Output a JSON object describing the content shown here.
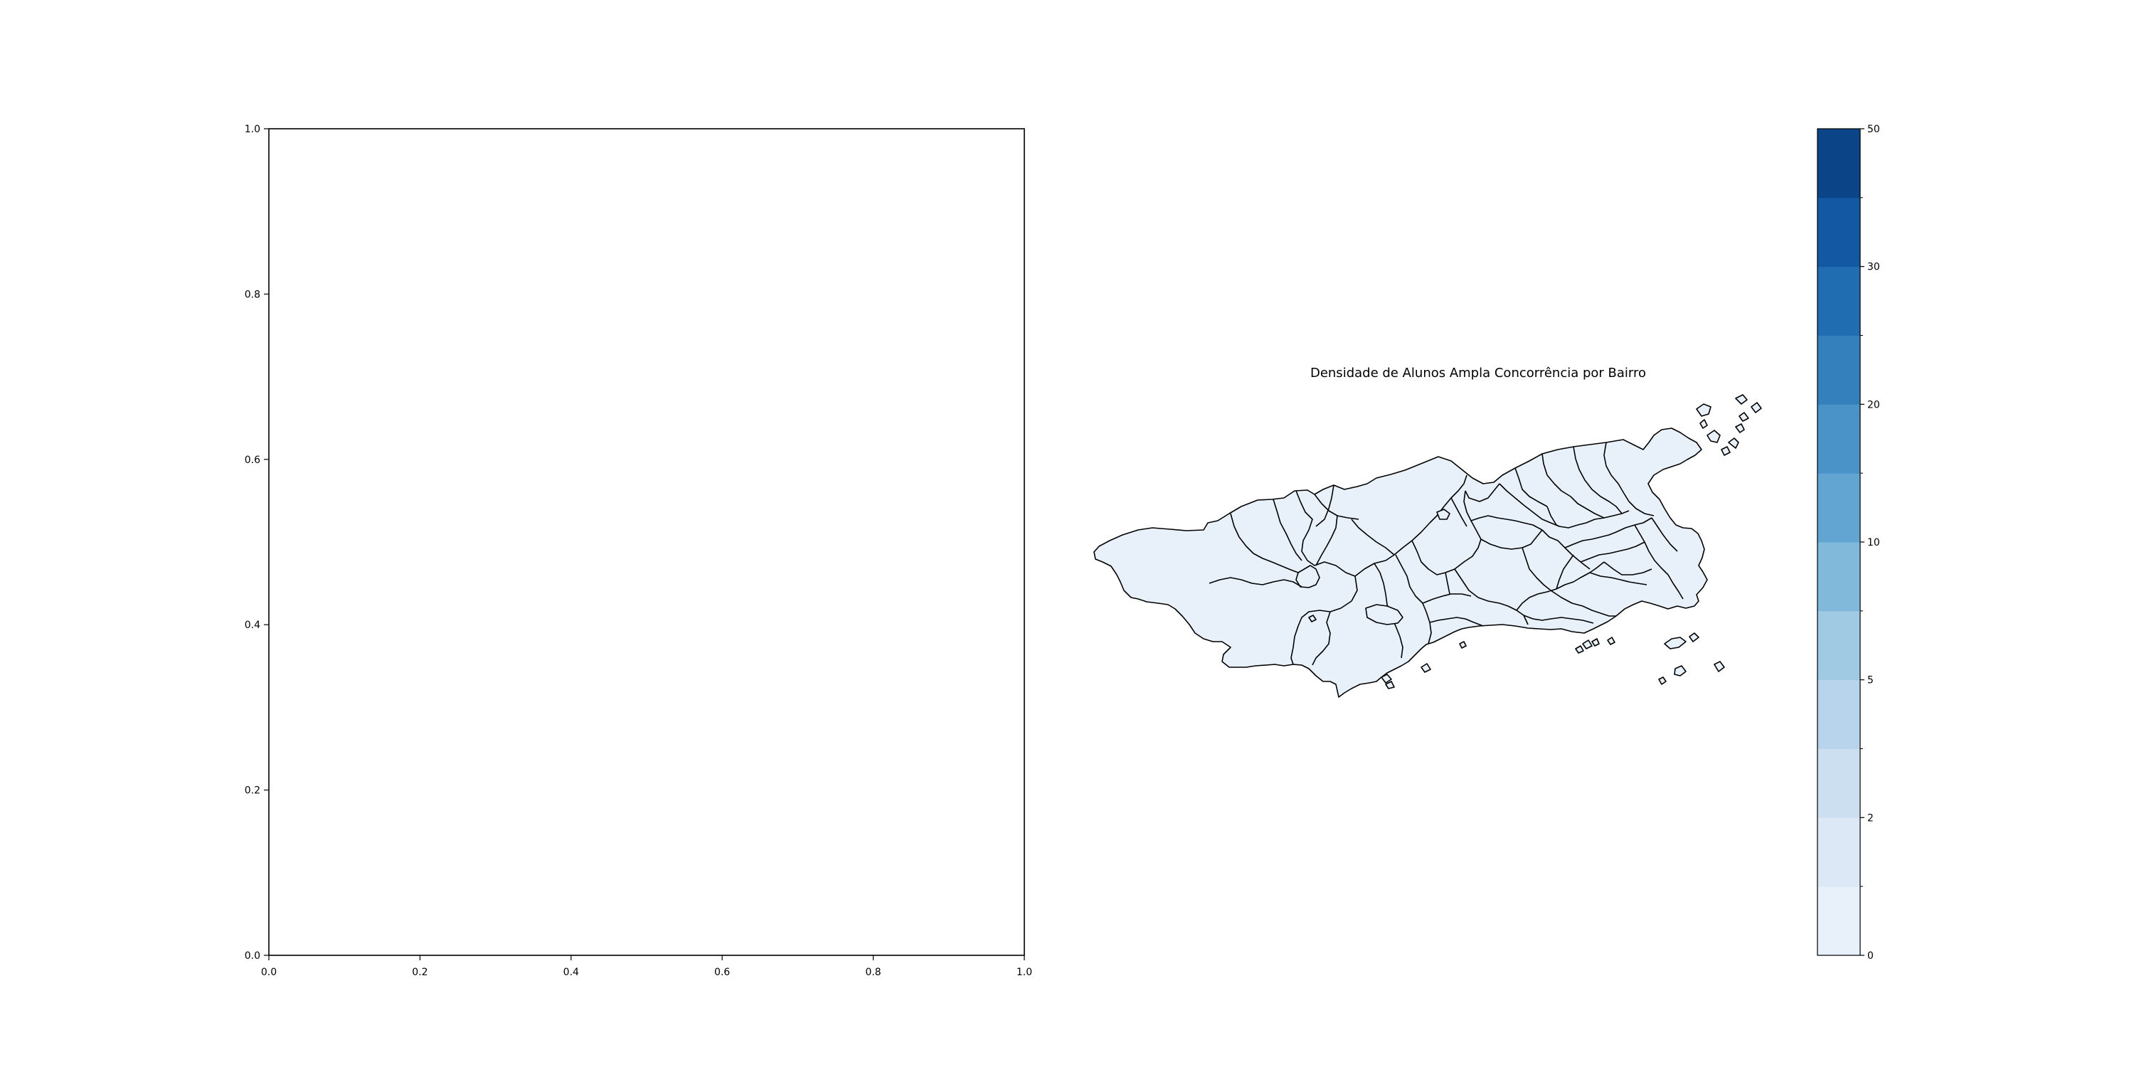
{
  "chart_data": [
    {
      "type": "empty_axes",
      "title": "",
      "xlim": [
        0,
        1
      ],
      "ylim": [
        0,
        1
      ],
      "xticks": [
        "0.0",
        "0.2",
        "0.4",
        "0.6",
        "0.8",
        "1.0"
      ],
      "yticks": [
        "0.0",
        "0.2",
        "0.4",
        "0.6",
        "0.8",
        "1.0"
      ],
      "grid": false
    },
    {
      "type": "choropleth",
      "title": "Densidade de Alunos Ampla Concorrência por Bairro",
      "region": "Rio de Janeiro neighbourhoods (bairros)",
      "fill_color": "#e8f0fa",
      "edge_color": "#000000",
      "colorbar": {
        "min": 0,
        "max": 50,
        "ticks": [
          "0",
          "2",
          "5",
          "10",
          "20",
          "30",
          "50"
        ],
        "colors": [
          "#e8f0fa",
          "#dce8f6",
          "#ccdff1",
          "#b8d4ec",
          "#a0c9e3",
          "#81b9db",
          "#62a5d2",
          "#4993c8",
          "#3480bd",
          "#216db2",
          "#1258a3",
          "#0b4588"
        ]
      }
    }
  ]
}
